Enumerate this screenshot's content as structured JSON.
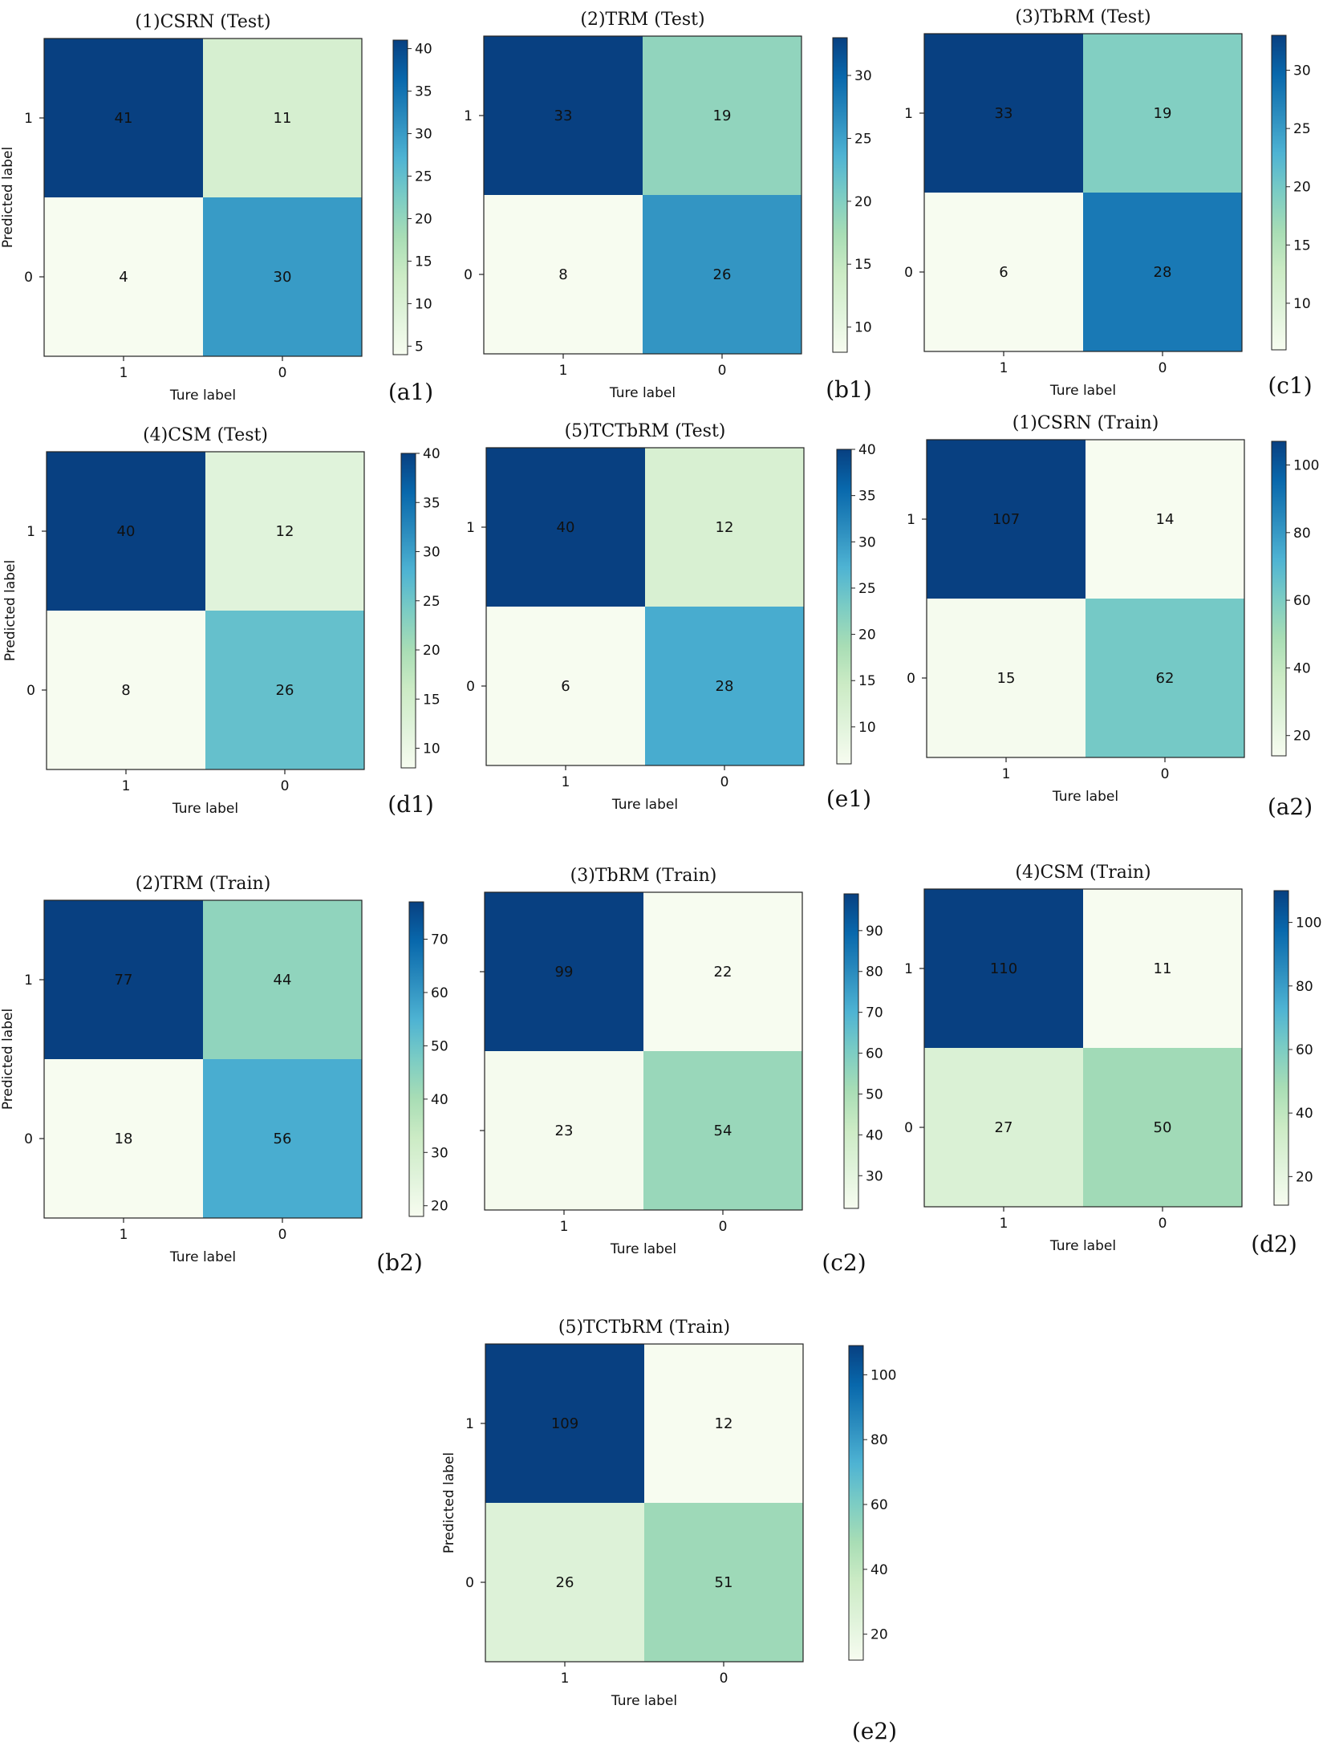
{
  "colors": {
    "cmap": [
      "#f7fcf0",
      "#e0f3db",
      "#ccebc5",
      "#a8ddb5",
      "#7bccc4",
      "#4eb3d3",
      "#2b8cbe",
      "#0868ac",
      "#084081"
    ],
    "frame": "#222222",
    "text": "#111111"
  },
  "chart_data": [
    {
      "type": "heatmap",
      "title": "(1)CSRN (Test)",
      "panel": "(a1)",
      "xlabel": "Ture label",
      "ylabel": "Predicted label",
      "x_ticks": [
        "1",
        "0"
      ],
      "y_ticks": [
        "1",
        "0"
      ],
      "matrix": [
        [
          41,
          11
        ],
        [
          4,
          30
        ]
      ],
      "vmin": 4,
      "vmax": 41,
      "colorbar_ticks": [
        5,
        10,
        15,
        20,
        25,
        30,
        35,
        40
      ]
    },
    {
      "type": "heatmap",
      "title": "(2)TRM (Test)",
      "panel": "(b1)",
      "xlabel": "Ture label",
      "ylabel": "",
      "x_ticks": [
        "1",
        "0"
      ],
      "y_ticks": [
        "1",
        "0"
      ],
      "matrix": [
        [
          33,
          19
        ],
        [
          8,
          26
        ]
      ],
      "vmin": 8,
      "vmax": 33,
      "colorbar_ticks": [
        10,
        15,
        20,
        25,
        30
      ]
    },
    {
      "type": "heatmap",
      "title": "(3)TbRM (Test)",
      "panel": "(c1)",
      "xlabel": "Ture label",
      "ylabel": "",
      "x_ticks": [
        "1",
        "0"
      ],
      "y_ticks": [
        "1",
        "0"
      ],
      "matrix": [
        [
          33,
          19
        ],
        [
          6,
          28
        ]
      ],
      "vmin": 6,
      "vmax": 33,
      "colorbar_ticks": [
        10,
        15,
        20,
        25,
        30
      ]
    },
    {
      "type": "heatmap",
      "title": "(4)CSM (Test)",
      "panel": "(d1)",
      "xlabel": "Ture label",
      "ylabel": "Predicted label",
      "x_ticks": [
        "1",
        "0"
      ],
      "y_ticks": [
        "1",
        "0"
      ],
      "matrix": [
        [
          40,
          12
        ],
        [
          8,
          26
        ]
      ],
      "vmin": 8,
      "vmax": 40,
      "colorbar_ticks": [
        10,
        15,
        20,
        25,
        30,
        35,
        40
      ]
    },
    {
      "type": "heatmap",
      "title": "(5)TCTbRM (Test)",
      "panel": "(e1)",
      "xlabel": "Ture label",
      "ylabel": "",
      "x_ticks": [
        "1",
        "0"
      ],
      "y_ticks": [
        "1",
        "0"
      ],
      "matrix": [
        [
          40,
          12
        ],
        [
          6,
          28
        ]
      ],
      "vmin": 6,
      "vmax": 40,
      "colorbar_ticks": [
        10,
        15,
        20,
        25,
        30,
        35,
        40
      ]
    },
    {
      "type": "heatmap",
      "title": "(1)CSRN (Train)",
      "panel": "(a2)",
      "xlabel": "Ture label",
      "ylabel": "",
      "x_ticks": [
        "1",
        "0"
      ],
      "y_ticks": [
        "1",
        "0"
      ],
      "matrix": [
        [
          107,
          14
        ],
        [
          15,
          62
        ]
      ],
      "vmin": 14,
      "vmax": 107,
      "colorbar_ticks": [
        20,
        40,
        60,
        80,
        100
      ]
    },
    {
      "type": "heatmap",
      "title": "(2)TRM (Train)",
      "panel": "(b2)",
      "xlabel": "Ture label",
      "ylabel": "Predicted label",
      "x_ticks": [
        "1",
        "0"
      ],
      "y_ticks": [
        "1",
        "0"
      ],
      "matrix": [
        [
          77,
          44
        ],
        [
          18,
          56
        ]
      ],
      "vmin": 18,
      "vmax": 77,
      "colorbar_ticks": [
        20,
        30,
        40,
        50,
        60,
        70
      ]
    },
    {
      "type": "heatmap",
      "title": "(3)TbRM (Train)",
      "panel": "(c2)",
      "xlabel": "Ture label",
      "ylabel": "",
      "x_ticks": [
        "1",
        "0"
      ],
      "y_ticks": [
        "",
        ""
      ],
      "matrix": [
        [
          99,
          22
        ],
        [
          23,
          54
        ]
      ],
      "vmin": 22,
      "vmax": 99,
      "colorbar_ticks": [
        30,
        40,
        50,
        60,
        70,
        80,
        90
      ]
    },
    {
      "type": "heatmap",
      "title": "(4)CSM (Train)",
      "panel": "(d2)",
      "xlabel": "Ture label",
      "ylabel": "",
      "x_ticks": [
        "1",
        "0"
      ],
      "y_ticks": [
        "1",
        "0"
      ],
      "matrix": [
        [
          110,
          11
        ],
        [
          27,
          50
        ]
      ],
      "vmin": 11,
      "vmax": 110,
      "colorbar_ticks": [
        20,
        40,
        60,
        80,
        100
      ]
    },
    {
      "type": "heatmap",
      "title": "(5)TCTbRM (Train)",
      "panel": "(e2)",
      "xlabel": "Ture label",
      "ylabel": "Predicted label",
      "x_ticks": [
        "1",
        "0"
      ],
      "y_ticks": [
        "1",
        "0"
      ],
      "matrix": [
        [
          109,
          12
        ],
        [
          26,
          51
        ]
      ],
      "vmin": 12,
      "vmax": 109,
      "colorbar_ticks": [
        20,
        40,
        60,
        80,
        100
      ]
    }
  ]
}
